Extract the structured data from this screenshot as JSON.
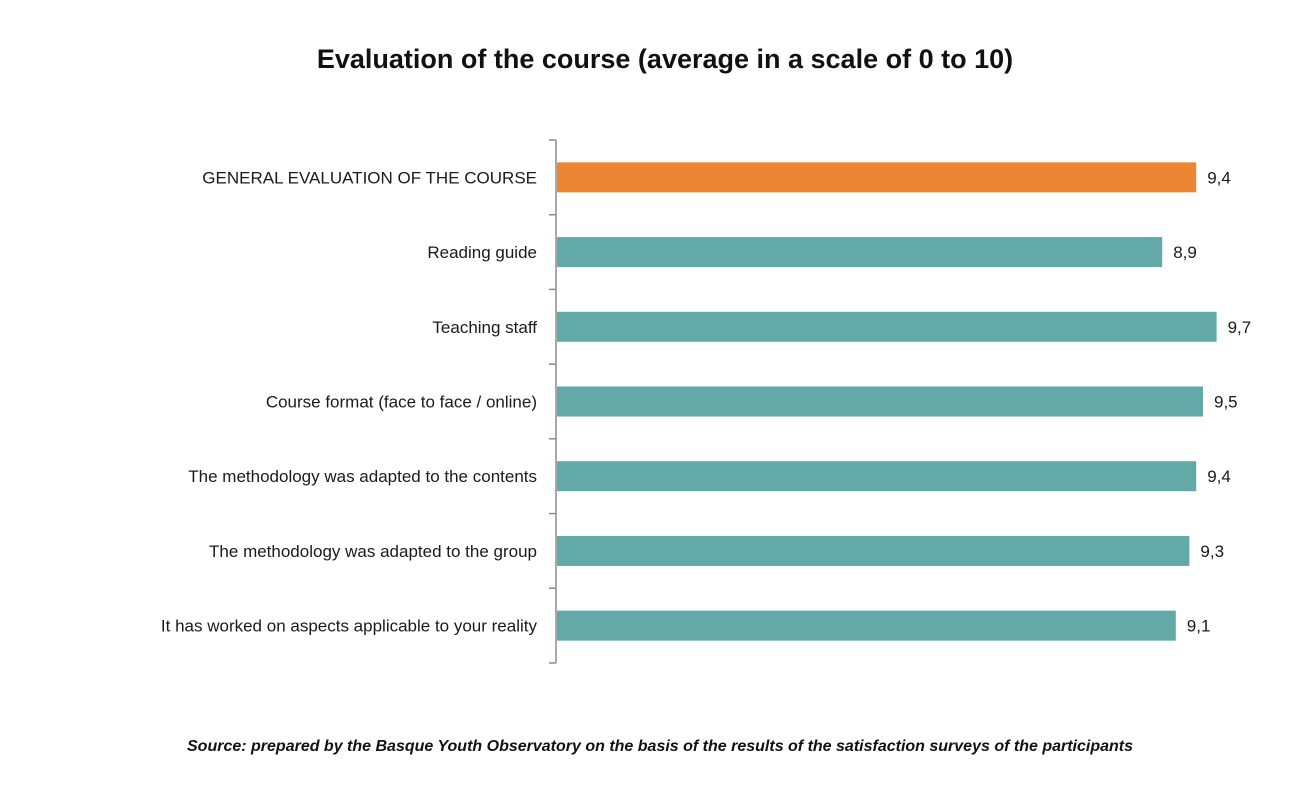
{
  "chart_data": {
    "type": "bar",
    "orientation": "horizontal",
    "title": "Evaluation of the course (average in a scale of 0 to 10)",
    "categories": [
      "GENERAL EVALUATION OF THE COURSE",
      "Reading guide",
      "Teaching staff",
      "Course format (face to face / online)",
      "The methodology was adapted to the contents",
      "The methodology was adapted to the group",
      "It has worked on aspects applicable to your reality"
    ],
    "values": [
      9.4,
      8.9,
      9.7,
      9.5,
      9.4,
      9.3,
      9.1
    ],
    "value_labels": [
      "9,4",
      "8,9",
      "9,7",
      "9,5",
      "9,4",
      "9,3",
      "9,1"
    ],
    "xlim": [
      0,
      10
    ],
    "grid": false,
    "legend": "none",
    "colors": {
      "highlight": "#ED8632",
      "default": "#62A9A8"
    },
    "source": "Source: prepared by the Basque Youth Observatory on the basis of the results of the satisfaction surveys of the participants"
  }
}
